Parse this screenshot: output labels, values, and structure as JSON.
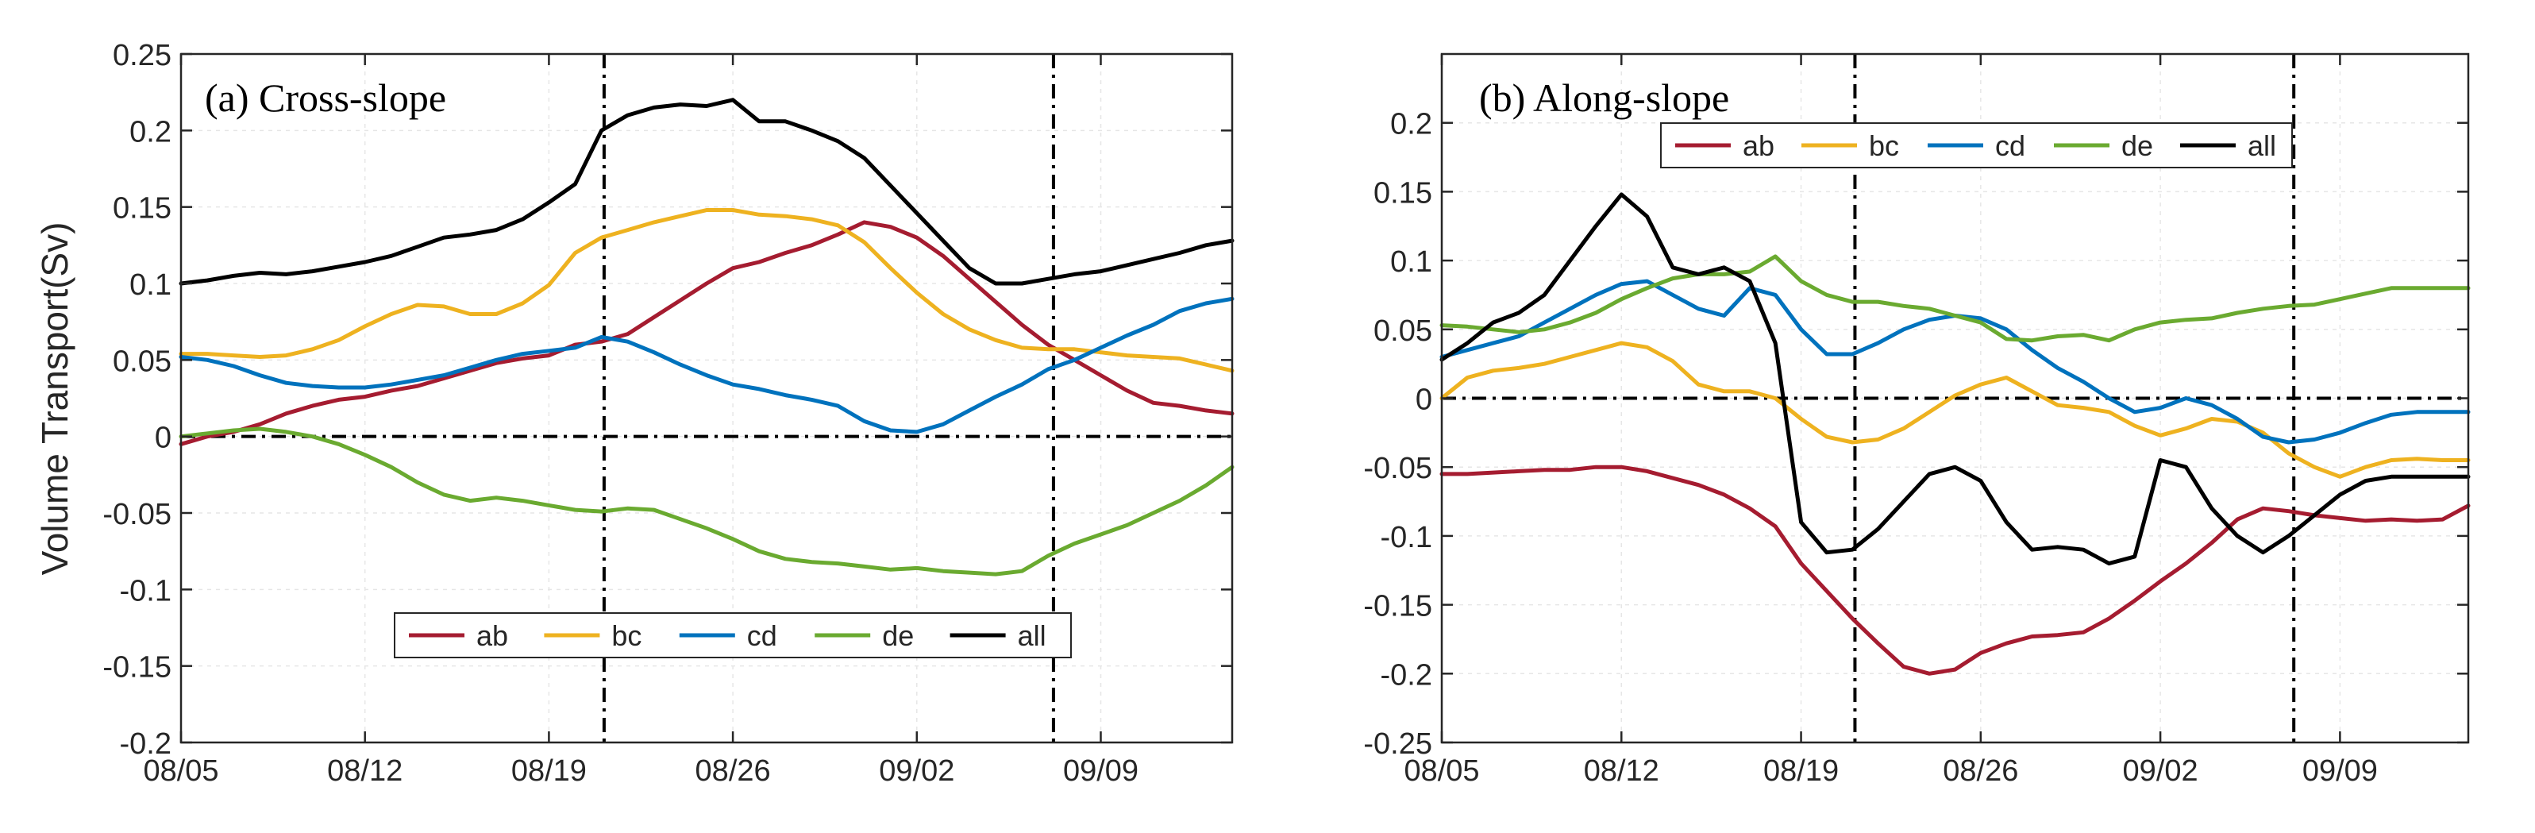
{
  "ylabel_shared": "Volume Transport(Sv)",
  "date_labels": [
    "08/05",
    "08/12",
    "08/19",
    "08/26",
    "09/02",
    "09/09"
  ],
  "series_colors": {
    "ab": "#a51c30",
    "bc": "#eeb220",
    "cd": "#0072bd",
    "de": "#6aaa30",
    "all": "#000000"
  },
  "chart_data": [
    {
      "type": "line",
      "title": "(a) Cross-slope",
      "xlabel": "",
      "ylabel": "Volume Transport(Sv)",
      "x_range_days": [
        0,
        40
      ],
      "ylim": [
        -0.2,
        0.25
      ],
      "yticks": [
        0.25,
        0.2,
        0.15,
        0.1,
        0.05,
        0,
        -0.05,
        -0.1,
        -0.15,
        -0.2
      ],
      "ytick_labels": [
        "0.25",
        "0.2",
        "0.15",
        "0.1",
        "0.05",
        "0",
        "-0.05",
        "-0.1",
        "-0.15",
        "-0.2"
      ],
      "xtick_days": [
        0,
        7,
        14,
        21,
        28,
        35
      ],
      "xtick_labels": [
        "08/05",
        "08/12",
        "08/19",
        "08/26",
        "09/02",
        "09/09"
      ],
      "vlines_days": [
        16.1,
        33.2
      ],
      "hline": 0,
      "legend_position": "bottom-center",
      "series": [
        {
          "name": "ab",
          "x": [
            0,
            1,
            2,
            3,
            4,
            5,
            6,
            7,
            8,
            9,
            10,
            11,
            12,
            13,
            14,
            15,
            16,
            17,
            18,
            19,
            20,
            21,
            22,
            23,
            24,
            25,
            26,
            27,
            28,
            29,
            30,
            31,
            32,
            33,
            34,
            35,
            36,
            37,
            38,
            39,
            40
          ],
          "values": [
            -0.005,
            0,
            0.003,
            0.008,
            0.015,
            0.02,
            0.024,
            0.026,
            0.03,
            0.033,
            0.038,
            0.043,
            0.048,
            0.051,
            0.053,
            0.06,
            0.062,
            0.067,
            0.078,
            0.089,
            0.1,
            0.11,
            0.114,
            0.12,
            0.125,
            0.132,
            0.14,
            0.137,
            0.13,
            0.118,
            0.103,
            0.088,
            0.073,
            0.06,
            0.05,
            0.04,
            0.03,
            0.022,
            0.02,
            0.017,
            0.015
          ]
        },
        {
          "name": "bc",
          "x": [
            0,
            1,
            2,
            3,
            4,
            5,
            6,
            7,
            8,
            9,
            10,
            11,
            12,
            13,
            14,
            15,
            16,
            17,
            18,
            19,
            20,
            21,
            22,
            23,
            24,
            25,
            26,
            27,
            28,
            29,
            30,
            31,
            32,
            33,
            34,
            35,
            36,
            37,
            38,
            39,
            40
          ],
          "values": [
            0.054,
            0.054,
            0.053,
            0.052,
            0.053,
            0.057,
            0.063,
            0.072,
            0.08,
            0.086,
            0.085,
            0.08,
            0.08,
            0.087,
            0.099,
            0.12,
            0.13,
            0.135,
            0.14,
            0.144,
            0.148,
            0.148,
            0.145,
            0.144,
            0.142,
            0.138,
            0.127,
            0.11,
            0.094,
            0.08,
            0.07,
            0.063,
            0.058,
            0.057,
            0.057,
            0.055,
            0.053,
            0.052,
            0.051,
            0.047,
            0.043
          ]
        },
        {
          "name": "cd",
          "x": [
            0,
            1,
            2,
            3,
            4,
            5,
            6,
            7,
            8,
            9,
            10,
            11,
            12,
            13,
            14,
            15,
            16,
            17,
            18,
            19,
            20,
            21,
            22,
            23,
            24,
            25,
            26,
            27,
            28,
            29,
            30,
            31,
            32,
            33,
            34,
            35,
            36,
            37,
            38,
            39,
            40
          ],
          "values": [
            0.052,
            0.05,
            0.046,
            0.04,
            0.035,
            0.033,
            0.032,
            0.032,
            0.034,
            0.037,
            0.04,
            0.045,
            0.05,
            0.054,
            0.056,
            0.058,
            0.065,
            0.062,
            0.055,
            0.047,
            0.04,
            0.034,
            0.031,
            0.027,
            0.024,
            0.02,
            0.01,
            0.004,
            0.003,
            0.008,
            0.017,
            0.026,
            0.034,
            0.044,
            0.05,
            0.058,
            0.066,
            0.073,
            0.082,
            0.087,
            0.09
          ]
        },
        {
          "name": "de",
          "x": [
            0,
            1,
            2,
            3,
            4,
            5,
            6,
            7,
            8,
            9,
            10,
            11,
            12,
            13,
            14,
            15,
            16,
            17,
            18,
            19,
            20,
            21,
            22,
            23,
            24,
            25,
            26,
            27,
            28,
            29,
            30,
            31,
            32,
            33,
            34,
            35,
            36,
            37,
            38,
            39,
            40
          ],
          "values": [
            0,
            0.002,
            0.004,
            0.005,
            0.003,
            0,
            -0.005,
            -0.012,
            -0.02,
            -0.03,
            -0.038,
            -0.042,
            -0.04,
            -0.042,
            -0.045,
            -0.048,
            -0.049,
            -0.047,
            -0.048,
            -0.054,
            -0.06,
            -0.067,
            -0.075,
            -0.08,
            -0.082,
            -0.083,
            -0.085,
            -0.087,
            -0.086,
            -0.088,
            -0.089,
            -0.09,
            -0.088,
            -0.078,
            -0.07,
            -0.064,
            -0.058,
            -0.05,
            -0.042,
            -0.032,
            -0.02
          ]
        },
        {
          "name": "all",
          "x": [
            0,
            1,
            2,
            3,
            4,
            5,
            6,
            7,
            8,
            9,
            10,
            11,
            12,
            13,
            14,
            15,
            16,
            17,
            18,
            19,
            20,
            21,
            22,
            23,
            24,
            25,
            26,
            27,
            28,
            29,
            30,
            31,
            32,
            33,
            34,
            35,
            36,
            37,
            38,
            39,
            40
          ],
          "values": [
            0.1,
            0.102,
            0.105,
            0.107,
            0.106,
            0.108,
            0.111,
            0.114,
            0.118,
            0.124,
            0.13,
            0.132,
            0.135,
            0.142,
            0.153,
            0.165,
            0.2,
            0.21,
            0.215,
            0.217,
            0.216,
            0.22,
            0.206,
            0.206,
            0.2,
            0.193,
            0.182,
            0.164,
            0.146,
            0.128,
            0.11,
            0.1,
            0.1,
            0.103,
            0.106,
            0.108,
            0.112,
            0.116,
            0.12,
            0.125,
            0.128
          ]
        }
      ]
    },
    {
      "type": "line",
      "title": "(b) Along-slope",
      "xlabel": "",
      "ylabel": "",
      "x_range_days": [
        0,
        40
      ],
      "ylim": [
        -0.25,
        0.25
      ],
      "yticks": [
        0.2,
        0.15,
        0.1,
        0.05,
        0,
        -0.05,
        -0.1,
        -0.15,
        -0.2,
        -0.25
      ],
      "ytick_labels": [
        "0.2",
        "0.15",
        "0.1",
        "0.05",
        "0",
        "-0.05",
        "-0.1",
        "-0.15",
        "-0.2",
        "-0.25"
      ],
      "xtick_days": [
        0,
        7,
        14,
        21,
        28,
        35
      ],
      "xtick_labels": [
        "08/05",
        "08/12",
        "08/19",
        "08/26",
        "09/02",
        "09/09"
      ],
      "vlines_days": [
        16.1,
        33.2
      ],
      "hline": 0,
      "legend_position": "top-center",
      "series": [
        {
          "name": "ab",
          "x": [
            0,
            1,
            2,
            3,
            4,
            5,
            6,
            7,
            8,
            9,
            10,
            11,
            12,
            13,
            14,
            15,
            16,
            17,
            18,
            19,
            20,
            21,
            22,
            23,
            24,
            25,
            26,
            27,
            28,
            29,
            30,
            31,
            32,
            33,
            34,
            35,
            36,
            37,
            38,
            39,
            40
          ],
          "values": [
            -0.055,
            -0.055,
            -0.054,
            -0.053,
            -0.052,
            -0.052,
            -0.05,
            -0.05,
            -0.053,
            -0.058,
            -0.063,
            -0.07,
            -0.08,
            -0.093,
            -0.12,
            -0.14,
            -0.16,
            -0.178,
            -0.195,
            -0.2,
            -0.197,
            -0.185,
            -0.178,
            -0.173,
            -0.172,
            -0.17,
            -0.16,
            -0.147,
            -0.133,
            -0.12,
            -0.105,
            -0.088,
            -0.08,
            -0.082,
            -0.085,
            -0.087,
            -0.089,
            -0.088,
            -0.089,
            -0.088,
            -0.078
          ]
        },
        {
          "name": "bc",
          "x": [
            0,
            1,
            2,
            3,
            4,
            5,
            6,
            7,
            8,
            9,
            10,
            11,
            12,
            13,
            14,
            15,
            16,
            17,
            18,
            19,
            20,
            21,
            22,
            23,
            24,
            25,
            26,
            27,
            28,
            29,
            30,
            31,
            32,
            33,
            34,
            35,
            36,
            37,
            38,
            39,
            40
          ],
          "values": [
            0,
            0.015,
            0.02,
            0.022,
            0.025,
            0.03,
            0.035,
            0.04,
            0.037,
            0.027,
            0.01,
            0.005,
            0.005,
            0,
            -0.015,
            -0.028,
            -0.032,
            -0.03,
            -0.022,
            -0.01,
            0.002,
            0.01,
            0.015,
            0.005,
            -0.005,
            -0.007,
            -0.01,
            -0.02,
            -0.027,
            -0.022,
            -0.015,
            -0.017,
            -0.025,
            -0.04,
            -0.05,
            -0.057,
            -0.05,
            -0.045,
            -0.044,
            -0.045,
            -0.045
          ]
        },
        {
          "name": "cd",
          "x": [
            0,
            1,
            2,
            3,
            4,
            5,
            6,
            7,
            8,
            9,
            10,
            11,
            12,
            13,
            14,
            15,
            16,
            17,
            18,
            19,
            20,
            21,
            22,
            23,
            24,
            25,
            26,
            27,
            28,
            29,
            30,
            31,
            32,
            33,
            34,
            35,
            36,
            37,
            38,
            39,
            40
          ],
          "values": [
            0.03,
            0.035,
            0.04,
            0.045,
            0.055,
            0.065,
            0.075,
            0.083,
            0.085,
            0.075,
            0.065,
            0.06,
            0.08,
            0.075,
            0.05,
            0.032,
            0.032,
            0.04,
            0.05,
            0.057,
            0.06,
            0.058,
            0.05,
            0.035,
            0.022,
            0.012,
            0,
            -0.01,
            -0.007,
            0,
            -0.005,
            -0.015,
            -0.028,
            -0.032,
            -0.03,
            -0.025,
            -0.018,
            -0.012,
            -0.01,
            -0.01,
            -0.01
          ]
        },
        {
          "name": "de",
          "x": [
            0,
            1,
            2,
            3,
            4,
            5,
            6,
            7,
            8,
            9,
            10,
            11,
            12,
            13,
            14,
            15,
            16,
            17,
            18,
            19,
            20,
            21,
            22,
            23,
            24,
            25,
            26,
            27,
            28,
            29,
            30,
            31,
            32,
            33,
            34,
            35,
            36,
            37,
            38,
            39,
            40
          ],
          "values": [
            0.053,
            0.052,
            0.05,
            0.048,
            0.05,
            0.055,
            0.062,
            0.072,
            0.08,
            0.087,
            0.09,
            0.09,
            0.092,
            0.103,
            0.085,
            0.075,
            0.07,
            0.07,
            0.067,
            0.065,
            0.06,
            0.055,
            0.043,
            0.042,
            0.045,
            0.046,
            0.042,
            0.05,
            0.055,
            0.057,
            0.058,
            0.062,
            0.065,
            0.067,
            0.068,
            0.072,
            0.076,
            0.08,
            0.08,
            0.08,
            0.08
          ]
        },
        {
          "name": "all",
          "x": [
            0,
            1,
            2,
            3,
            4,
            5,
            6,
            7,
            8,
            9,
            10,
            11,
            12,
            13,
            14,
            15,
            16,
            17,
            18,
            19,
            20,
            21,
            22,
            23,
            24,
            25,
            26,
            27,
            28,
            29,
            30,
            31,
            32,
            33,
            34,
            35,
            36,
            37,
            38,
            39,
            40
          ],
          "values": [
            0.028,
            0.04,
            0.055,
            0.062,
            0.075,
            0.1,
            0.125,
            0.148,
            0.132,
            0.095,
            0.09,
            0.095,
            0.085,
            0.04,
            -0.09,
            -0.112,
            -0.11,
            -0.095,
            -0.075,
            -0.055,
            -0.05,
            -0.06,
            -0.09,
            -0.11,
            -0.108,
            -0.11,
            -0.12,
            -0.115,
            -0.045,
            -0.05,
            -0.08,
            -0.1,
            -0.112,
            -0.1,
            -0.085,
            -0.07,
            -0.06,
            -0.057,
            -0.057,
            -0.057,
            -0.057
          ]
        }
      ]
    }
  ]
}
